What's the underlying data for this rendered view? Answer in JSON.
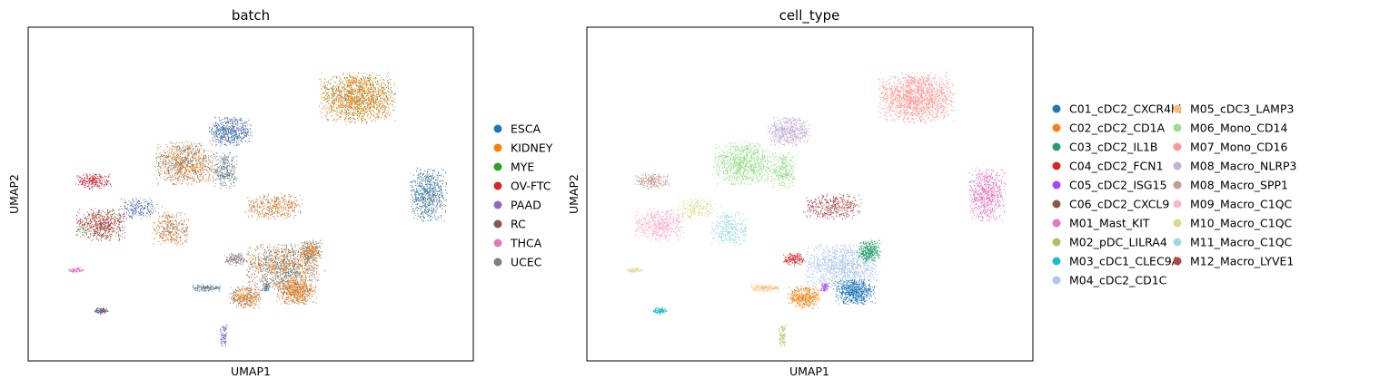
{
  "chart_data": [
    {
      "type": "scatter",
      "title": "batch",
      "xlabel": "UMAP1",
      "ylabel": "UMAP2",
      "grid": false,
      "legend_placement": "right",
      "series": [
        {
          "name": "ESCA",
          "color": "#1f77b4"
        },
        {
          "name": "KIDNEY",
          "color": "#ff7f0e"
        },
        {
          "name": "MYE",
          "color": "#2ca02c"
        },
        {
          "name": "OV-FTC",
          "color": "#d62728"
        },
        {
          "name": "PAAD",
          "color": "#9467bd"
        },
        {
          "name": "RC",
          "color": "#8c564b"
        },
        {
          "name": "THCA",
          "color": "#e377c2"
        },
        {
          "name": "UCEC",
          "color": "#7f7f7f"
        }
      ]
    },
    {
      "type": "scatter",
      "title": "cell_type",
      "xlabel": "UMAP1",
      "ylabel": "UMAP2",
      "grid": false,
      "legend_placement": "right",
      "series": [
        {
          "name": "C01_cDC2_CXCR4hi",
          "color": "#1f77b4"
        },
        {
          "name": "C02_cDC2_CD1A",
          "color": "#ff7f0e"
        },
        {
          "name": "C03_cDC2_IL1B",
          "color": "#279e68"
        },
        {
          "name": "C04_cDC2_FCN1",
          "color": "#d62728"
        },
        {
          "name": "C05_cDC2_ISG15",
          "color": "#aa40fc"
        },
        {
          "name": "C06_cDC2_CXCL9",
          "color": "#8c564b"
        },
        {
          "name": "M01_Mast_KIT",
          "color": "#e377c2"
        },
        {
          "name": "M02_pDC_LILRA4",
          "color": "#b5bd61"
        },
        {
          "name": "M03_cDC1_CLEC9A",
          "color": "#17becf"
        },
        {
          "name": "M04_cDC2_CD1C",
          "color": "#aec7e8"
        },
        {
          "name": "M05_cDC3_LAMP3",
          "color": "#ffbb78"
        },
        {
          "name": "M06_Mono_CD14",
          "color": "#98df8a"
        },
        {
          "name": "M07_Mono_CD16",
          "color": "#ff9896"
        },
        {
          "name": "M08_Macro_NLRP3",
          "color": "#c5b0d5"
        },
        {
          "name": "M08_Macro_SPP1",
          "color": "#c49c94"
        },
        {
          "name": "M09_Macro_C1QC",
          "color": "#f7b6d2"
        },
        {
          "name": "M10_Macro_C1QC",
          "color": "#dbdb8d"
        },
        {
          "name": "M11_Macro_C1QC",
          "color": "#9edae5"
        },
        {
          "name": "M12_Macro_LYVE1",
          "color": "#ad494a"
        }
      ]
    }
  ]
}
